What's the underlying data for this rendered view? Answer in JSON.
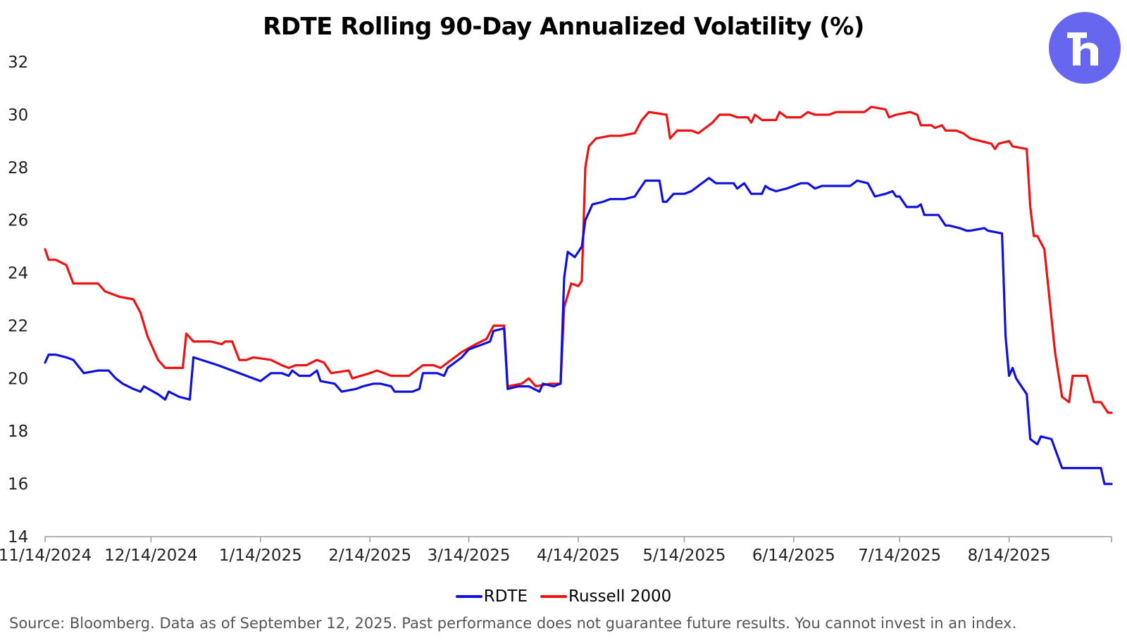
{
  "chart_data": {
    "type": "line",
    "title": "RDTE Rolling 90-Day Annualized Volatility (%)",
    "xlabel": "",
    "ylabel": "",
    "ylim": [
      14,
      32
    ],
    "yticks": [
      14,
      16,
      18,
      20,
      22,
      24,
      26,
      28,
      30,
      32
    ],
    "xlim": [
      "2024-11-14",
      "2025-09-12"
    ],
    "xticks": [
      "2024-11-14",
      "2024-12-14",
      "2025-01-14",
      "2025-02-14",
      "2025-03-14",
      "2025-04-14",
      "2025-05-14",
      "2025-06-14",
      "2025-07-14",
      "2025-08-14"
    ],
    "xtick_labels": [
      "11/14/2024",
      "12/14/2024",
      "1/14/2025",
      "2/14/2025",
      "3/14/2025",
      "4/14/2025",
      "5/14/2025",
      "6/14/2025",
      "7/14/2025",
      "8/14/2025"
    ],
    "grid": false,
    "legend": "bottom",
    "series": [
      {
        "name": "RDTE",
        "color": "#1010dd",
        "points": [
          [
            "2024-11-14",
            20.6
          ],
          [
            "2024-11-15",
            20.9
          ],
          [
            "2024-11-17",
            20.9
          ],
          [
            "2024-11-20",
            20.8
          ],
          [
            "2024-11-22",
            20.7
          ],
          [
            "2024-11-25",
            20.2
          ],
          [
            "2024-11-29",
            20.3
          ],
          [
            "2024-12-02",
            20.3
          ],
          [
            "2024-12-04",
            20.0
          ],
          [
            "2024-12-06",
            19.8
          ],
          [
            "2024-12-09",
            19.6
          ],
          [
            "2024-12-11",
            19.5
          ],
          [
            "2024-12-12",
            19.7
          ],
          [
            "2024-12-16",
            19.4
          ],
          [
            "2024-12-18",
            19.2
          ],
          [
            "2024-12-19",
            19.5
          ],
          [
            "2024-12-22",
            19.3
          ],
          [
            "2024-12-25",
            19.2
          ],
          [
            "2024-12-26",
            20.8
          ],
          [
            "2025-01-02",
            20.5
          ],
          [
            "2025-01-06",
            20.3
          ],
          [
            "2025-01-10",
            20.1
          ],
          [
            "2025-01-14",
            19.9
          ],
          [
            "2025-01-17",
            20.2
          ],
          [
            "2025-01-20",
            20.2
          ],
          [
            "2025-01-22",
            20.1
          ],
          [
            "2025-01-23",
            20.3
          ],
          [
            "2025-01-25",
            20.1
          ],
          [
            "2025-01-28",
            20.1
          ],
          [
            "2025-01-30",
            20.3
          ],
          [
            "2025-01-31",
            19.9
          ],
          [
            "2025-02-04",
            19.8
          ],
          [
            "2025-02-06",
            19.5
          ],
          [
            "2025-02-10",
            19.6
          ],
          [
            "2025-02-12",
            19.7
          ],
          [
            "2025-02-15",
            19.8
          ],
          [
            "2025-02-17",
            19.8
          ],
          [
            "2025-02-20",
            19.7
          ],
          [
            "2025-02-21",
            19.5
          ],
          [
            "2025-02-26",
            19.5
          ],
          [
            "2025-02-28",
            19.6
          ],
          [
            "2025-03-01",
            20.2
          ],
          [
            "2025-03-05",
            20.2
          ],
          [
            "2025-03-07",
            20.1
          ],
          [
            "2025-03-08",
            20.4
          ],
          [
            "2025-03-12",
            20.8
          ],
          [
            "2025-03-14",
            21.1
          ],
          [
            "2025-03-18",
            21.3
          ],
          [
            "2025-03-20",
            21.4
          ],
          [
            "2025-03-21",
            21.8
          ],
          [
            "2025-03-24",
            21.9
          ],
          [
            "2025-03-25",
            19.6
          ],
          [
            "2025-03-28",
            19.7
          ],
          [
            "2025-03-31",
            19.7
          ],
          [
            "2025-04-03",
            19.5
          ],
          [
            "2025-04-04",
            19.8
          ],
          [
            "2025-04-07",
            19.7
          ],
          [
            "2025-04-09",
            19.8
          ],
          [
            "2025-04-10",
            23.8
          ],
          [
            "2025-04-11",
            24.8
          ],
          [
            "2025-04-12",
            24.7
          ],
          [
            "2025-04-13",
            24.6
          ],
          [
            "2025-04-15",
            25.0
          ],
          [
            "2025-04-16",
            26.0
          ],
          [
            "2025-04-18",
            26.6
          ],
          [
            "2025-04-21",
            26.7
          ],
          [
            "2025-04-23",
            26.8
          ],
          [
            "2025-04-27",
            26.8
          ],
          [
            "2025-04-30",
            26.9
          ],
          [
            "2025-05-01",
            27.1
          ],
          [
            "2025-05-03",
            27.5
          ],
          [
            "2025-05-07",
            27.5
          ],
          [
            "2025-05-08",
            26.7
          ],
          [
            "2025-05-09",
            26.7
          ],
          [
            "2025-05-11",
            27.0
          ],
          [
            "2025-05-14",
            27.0
          ],
          [
            "2025-05-16",
            27.1
          ],
          [
            "2025-05-20",
            27.5
          ],
          [
            "2025-05-21",
            27.6
          ],
          [
            "2025-05-23",
            27.4
          ],
          [
            "2025-05-28",
            27.4
          ],
          [
            "2025-05-29",
            27.2
          ],
          [
            "2025-05-31",
            27.4
          ],
          [
            "2025-06-01",
            27.2
          ],
          [
            "2025-06-02",
            27.0
          ],
          [
            "2025-06-05",
            27.0
          ],
          [
            "2025-06-06",
            27.3
          ],
          [
            "2025-06-07",
            27.2
          ],
          [
            "2025-06-09",
            27.1
          ],
          [
            "2025-06-12",
            27.2
          ],
          [
            "2025-06-14",
            27.3
          ],
          [
            "2025-06-16",
            27.4
          ],
          [
            "2025-06-18",
            27.4
          ],
          [
            "2025-06-20",
            27.2
          ],
          [
            "2025-06-22",
            27.3
          ],
          [
            "2025-06-25",
            27.3
          ],
          [
            "2025-06-30",
            27.3
          ],
          [
            "2025-07-02",
            27.5
          ],
          [
            "2025-07-05",
            27.4
          ],
          [
            "2025-07-07",
            26.9
          ],
          [
            "2025-07-10",
            27.0
          ],
          [
            "2025-07-12",
            27.1
          ],
          [
            "2025-07-13",
            26.9
          ],
          [
            "2025-07-14",
            26.9
          ],
          [
            "2025-07-16",
            26.5
          ],
          [
            "2025-07-19",
            26.5
          ],
          [
            "2025-07-20",
            26.6
          ],
          [
            "2025-07-21",
            26.2
          ],
          [
            "2025-07-25",
            26.2
          ],
          [
            "2025-07-27",
            25.8
          ],
          [
            "2025-07-28",
            25.8
          ],
          [
            "2025-07-31",
            25.7
          ],
          [
            "2025-08-02",
            25.6
          ],
          [
            "2025-08-03",
            25.6
          ],
          [
            "2025-08-07",
            25.7
          ],
          [
            "2025-08-08",
            25.6
          ],
          [
            "2025-08-12",
            25.5
          ],
          [
            "2025-08-13",
            21.6
          ],
          [
            "2025-08-14",
            20.1
          ],
          [
            "2025-08-15",
            20.4
          ],
          [
            "2025-08-16",
            20.0
          ],
          [
            "2025-08-19",
            19.4
          ],
          [
            "2025-08-20",
            17.7
          ],
          [
            "2025-08-22",
            17.5
          ],
          [
            "2025-08-23",
            17.8
          ],
          [
            "2025-08-26",
            17.7
          ],
          [
            "2025-08-29",
            16.6
          ],
          [
            "2025-09-02",
            16.6
          ],
          [
            "2025-09-07",
            16.6
          ],
          [
            "2025-09-09",
            16.6
          ],
          [
            "2025-09-10",
            16.0
          ],
          [
            "2025-09-12",
            16.0
          ]
        ]
      },
      {
        "name": "Russell 2000",
        "color": "#ee1111",
        "points": [
          [
            "2024-11-14",
            24.9
          ],
          [
            "2024-11-15",
            24.5
          ],
          [
            "2024-11-17",
            24.5
          ],
          [
            "2024-11-20",
            24.3
          ],
          [
            "2024-11-22",
            23.6
          ],
          [
            "2024-11-24",
            23.6
          ],
          [
            "2024-11-29",
            23.6
          ],
          [
            "2024-12-01",
            23.3
          ],
          [
            "2024-12-05",
            23.1
          ],
          [
            "2024-12-09",
            23.0
          ],
          [
            "2024-12-11",
            22.5
          ],
          [
            "2024-12-13",
            21.6
          ],
          [
            "2024-12-16",
            20.7
          ],
          [
            "2024-12-18",
            20.4
          ],
          [
            "2024-12-23",
            20.4
          ],
          [
            "2024-12-24",
            21.7
          ],
          [
            "2024-12-26",
            21.4
          ],
          [
            "2024-12-31",
            21.4
          ],
          [
            "2025-01-03",
            21.3
          ],
          [
            "2025-01-04",
            21.4
          ],
          [
            "2025-01-06",
            21.4
          ],
          [
            "2025-01-08",
            20.7
          ],
          [
            "2025-01-10",
            20.7
          ],
          [
            "2025-01-12",
            20.8
          ],
          [
            "2025-01-17",
            20.7
          ],
          [
            "2025-01-20",
            20.5
          ],
          [
            "2025-01-22",
            20.4
          ],
          [
            "2025-01-24",
            20.5
          ],
          [
            "2025-01-27",
            20.5
          ],
          [
            "2025-01-30",
            20.7
          ],
          [
            "2025-02-01",
            20.6
          ],
          [
            "2025-02-03",
            20.2
          ],
          [
            "2025-02-08",
            20.3
          ],
          [
            "2025-02-09",
            20.0
          ],
          [
            "2025-02-14",
            20.2
          ],
          [
            "2025-02-16",
            20.3
          ],
          [
            "2025-02-18",
            20.2
          ],
          [
            "2025-02-20",
            20.1
          ],
          [
            "2025-02-25",
            20.1
          ],
          [
            "2025-03-01",
            20.5
          ],
          [
            "2025-03-04",
            20.5
          ],
          [
            "2025-03-06",
            20.4
          ],
          [
            "2025-03-08",
            20.6
          ],
          [
            "2025-03-12",
            21.0
          ],
          [
            "2025-03-16",
            21.3
          ],
          [
            "2025-03-19",
            21.5
          ],
          [
            "2025-03-21",
            22.0
          ],
          [
            "2025-03-24",
            22.0
          ],
          [
            "2025-03-25",
            19.7
          ],
          [
            "2025-03-29",
            19.8
          ],
          [
            "2025-03-31",
            20.0
          ],
          [
            "2025-04-02",
            19.7
          ],
          [
            "2025-04-06",
            19.8
          ],
          [
            "2025-04-09",
            19.8
          ],
          [
            "2025-04-10",
            22.7
          ],
          [
            "2025-04-12",
            23.6
          ],
          [
            "2025-04-14",
            23.5
          ],
          [
            "2025-04-15",
            23.7
          ],
          [
            "2025-04-16",
            28.0
          ],
          [
            "2025-04-17",
            28.8
          ],
          [
            "2025-04-19",
            29.1
          ],
          [
            "2025-04-23",
            29.2
          ],
          [
            "2025-04-26",
            29.2
          ],
          [
            "2025-04-30",
            29.3
          ],
          [
            "2025-05-02",
            29.8
          ],
          [
            "2025-05-04",
            30.1
          ],
          [
            "2025-05-09",
            30.0
          ],
          [
            "2025-05-10",
            29.1
          ],
          [
            "2025-05-12",
            29.4
          ],
          [
            "2025-05-16",
            29.4
          ],
          [
            "2025-05-18",
            29.3
          ],
          [
            "2025-05-22",
            29.7
          ],
          [
            "2025-05-24",
            30.0
          ],
          [
            "2025-05-27",
            30.0
          ],
          [
            "2025-05-29",
            29.9
          ],
          [
            "2025-06-01",
            29.9
          ],
          [
            "2025-06-02",
            29.7
          ],
          [
            "2025-06-03",
            30.0
          ],
          [
            "2025-06-05",
            29.8
          ],
          [
            "2025-06-09",
            29.8
          ],
          [
            "2025-06-10",
            30.1
          ],
          [
            "2025-06-12",
            29.9
          ],
          [
            "2025-06-16",
            29.9
          ],
          [
            "2025-06-18",
            30.1
          ],
          [
            "2025-06-20",
            30.0
          ],
          [
            "2025-06-24",
            30.0
          ],
          [
            "2025-06-26",
            30.1
          ],
          [
            "2025-06-30",
            30.1
          ],
          [
            "2025-07-04",
            30.1
          ],
          [
            "2025-07-06",
            30.3
          ],
          [
            "2025-07-10",
            30.2
          ],
          [
            "2025-07-11",
            29.9
          ],
          [
            "2025-07-13",
            30.0
          ],
          [
            "2025-07-17",
            30.1
          ],
          [
            "2025-07-19",
            30.0
          ],
          [
            "2025-07-20",
            29.6
          ],
          [
            "2025-07-23",
            29.6
          ],
          [
            "2025-07-24",
            29.5
          ],
          [
            "2025-07-26",
            29.6
          ],
          [
            "2025-07-27",
            29.4
          ],
          [
            "2025-07-30",
            29.4
          ],
          [
            "2025-08-01",
            29.3
          ],
          [
            "2025-08-03",
            29.1
          ],
          [
            "2025-08-06",
            29.0
          ],
          [
            "2025-08-09",
            28.9
          ],
          [
            "2025-08-10",
            28.7
          ],
          [
            "2025-08-11",
            28.9
          ],
          [
            "2025-08-14",
            29.0
          ],
          [
            "2025-08-15",
            28.8
          ],
          [
            "2025-08-19",
            28.7
          ],
          [
            "2025-08-20",
            26.5
          ],
          [
            "2025-08-21",
            25.4
          ],
          [
            "2025-08-22",
            25.4
          ],
          [
            "2025-08-24",
            24.9
          ],
          [
            "2025-08-27",
            21.0
          ],
          [
            "2025-08-29",
            19.3
          ],
          [
            "2025-08-31",
            19.1
          ],
          [
            "2025-09-01",
            20.1
          ],
          [
            "2025-09-05",
            20.1
          ],
          [
            "2025-09-07",
            19.1
          ],
          [
            "2025-09-09",
            19.1
          ],
          [
            "2025-09-10",
            18.9
          ],
          [
            "2025-09-11",
            18.7
          ],
          [
            "2025-09-12",
            18.7
          ]
        ]
      }
    ]
  },
  "source_note": "Source: Bloomberg. Data as of September 12, 2025. Past performance does not guarantee future results. You cannot invest in an index.",
  "logo": {
    "icon": "r-logo-icon",
    "color": "#6666ee"
  },
  "axis_color": "#999999"
}
